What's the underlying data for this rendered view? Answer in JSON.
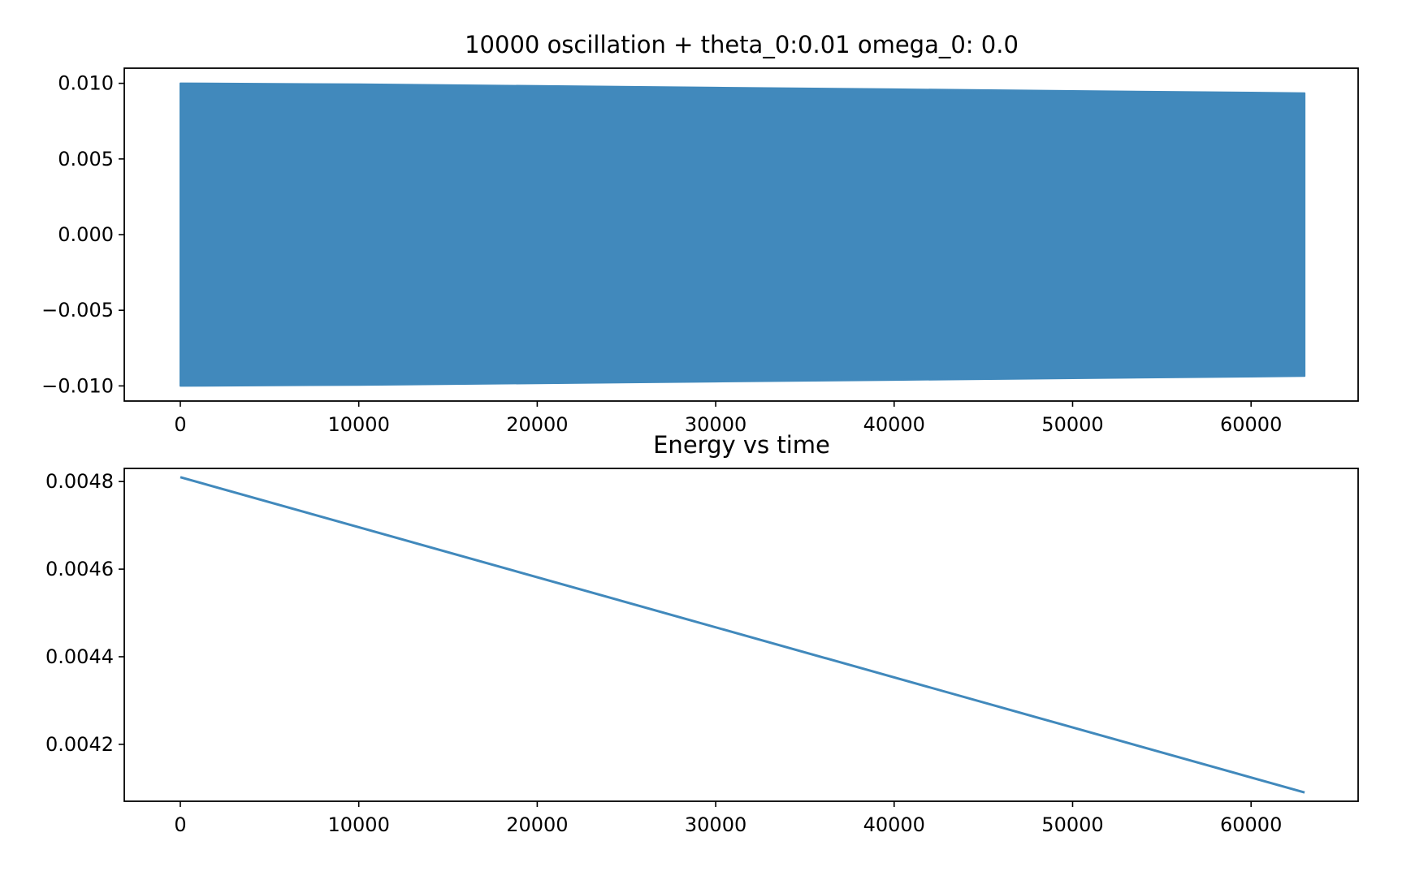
{
  "chart_data": [
    {
      "type": "area",
      "title": "10000 oscillation + theta_0:0.01 omega_0: 0.0",
      "xlabel": "",
      "ylabel": "",
      "xlim": [
        -3140,
        66000
      ],
      "ylim": [
        -0.011,
        0.011
      ],
      "xticks": [
        0,
        10000,
        20000,
        30000,
        40000,
        50000,
        60000
      ],
      "xtick_labels": [
        "0",
        "10000",
        "20000",
        "30000",
        "40000",
        "50000",
        "60000"
      ],
      "yticks": [
        0.01,
        0.005,
        0.0,
        -0.005,
        -0.01
      ],
      "ytick_labels": [
        "0.010",
        "0.005",
        "0.000",
        "−0.005",
        "−0.010"
      ],
      "grid": false,
      "color": "#4189bc",
      "series": [
        {
          "x": [
            0,
            10000,
            20000,
            30000,
            40000,
            50000,
            60000,
            63000
          ],
          "upper": [
            0.01,
            0.00994,
            0.00983,
            0.00972,
            0.00961,
            0.0095,
            0.00939,
            0.00935
          ],
          "lower": [
            -0.01,
            -0.00994,
            -0.00983,
            -0.00972,
            -0.00961,
            -0.0095,
            -0.00939,
            -0.00935
          ]
        }
      ]
    },
    {
      "type": "line",
      "title": "Energy vs time",
      "xlabel": "",
      "ylabel": "",
      "xlim": [
        -3140,
        66000
      ],
      "ylim": [
        0.00407,
        0.00483
      ],
      "xticks": [
        0,
        10000,
        20000,
        30000,
        40000,
        50000,
        60000
      ],
      "xtick_labels": [
        "0",
        "10000",
        "20000",
        "30000",
        "40000",
        "50000",
        "60000"
      ],
      "yticks": [
        0.0048,
        0.0046,
        0.0044,
        0.0042
      ],
      "ytick_labels": [
        "0.0048",
        "0.0046",
        "0.0044",
        "0.0042"
      ],
      "grid": false,
      "color": "#4189bc",
      "series": [
        {
          "x": [
            0,
            63000
          ],
          "values": [
            0.00481,
            0.00409
          ]
        }
      ]
    }
  ]
}
